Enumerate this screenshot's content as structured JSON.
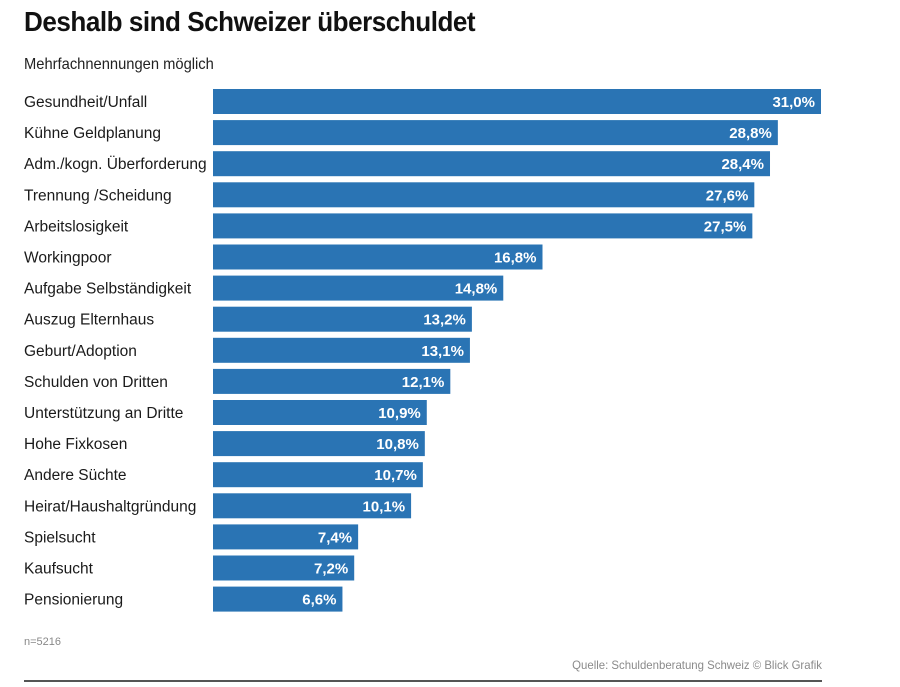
{
  "header": {
    "title": "Deshalb sind Schweizer überschuldet",
    "subtitle": "Mehrfachnennungen möglich"
  },
  "footer": {
    "sample_note": "n=5216",
    "source": "Quelle: Schuldenberatung Schweiz © Blick Grafik"
  },
  "colors": {
    "bar": "#2a74b4",
    "value_text": "#ffffff"
  },
  "chart_data": {
    "type": "bar",
    "orientation": "horizontal",
    "title": "Deshalb sind Schweizer überschuldet",
    "subtitle": "Mehrfachnennungen möglich",
    "categories": [
      "Gesundheit/Unfall",
      "Kühne Geldplanung",
      "Adm./kogn. Überforderung",
      "Trennung /Scheidung",
      "Arbeitslosigkeit",
      "Workingpoor",
      "Aufgabe Selbständigkeit",
      "Auszug Elternhaus",
      "Geburt/Adoption",
      "Schulden von Dritten",
      "Unterstützung an Dritte",
      "Hohe Fixkosen",
      "Andere Süchte",
      "Heirat/Haushaltgründung",
      "Spielsucht",
      "Kaufsucht",
      "Pensionierung"
    ],
    "values": [
      31.0,
      28.8,
      28.4,
      27.6,
      27.5,
      16.8,
      14.8,
      13.2,
      13.1,
      12.1,
      10.9,
      10.8,
      10.7,
      10.1,
      7.4,
      7.2,
      6.6
    ],
    "value_labels": [
      "31,0%",
      "28,8%",
      "28,4%",
      "27,6%",
      "27,5%",
      "16,8%",
      "14,8%",
      "13,2%",
      "13,1%",
      "12,1%",
      "10,9%",
      "10,8%",
      "10,7%",
      "10,1%",
      "7,4%",
      "7,2%",
      "6,6%"
    ],
    "unit": "%",
    "xlim": [
      0,
      31.0
    ],
    "grid": false,
    "legend": "none"
  }
}
